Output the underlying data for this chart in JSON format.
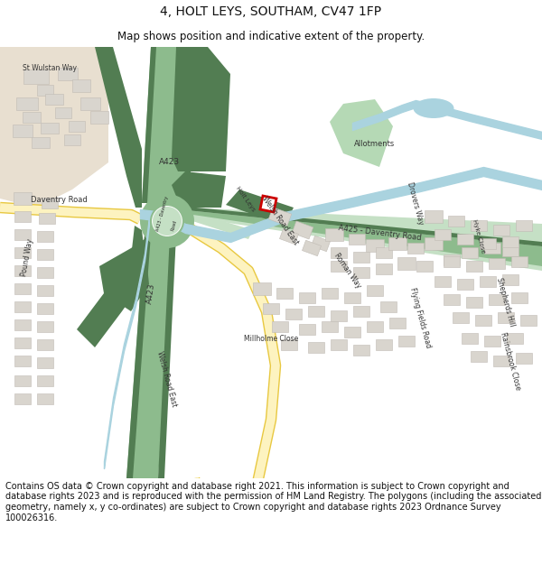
{
  "title_line1": "4, HOLT LEYS, SOUTHAM, CV47 1FP",
  "title_line2": "Map shows position and indicative extent of the property.",
  "footer_text": "Contains OS data © Crown copyright and database right 2021. This information is subject to Crown copyright and database rights 2023 and is reproduced with the permission of HM Land Registry. The polygons (including the associated geometry, namely x, y co-ordinates) are subject to Crown copyright and database rights 2023 Ordnance Survey 100026316.",
  "bg_color": "#ffffff",
  "title_fontsize": 10,
  "subtitle_fontsize": 8.5,
  "footer_fontsize": 7,
  "fig_width": 6.0,
  "fig_height": 6.25,
  "c_bg": "#f5f3ef",
  "c_road_green": "#8dbb8d",
  "c_road_green_light": "#c5e0c5",
  "c_road_green_dark": "#4a7a4a",
  "c_road_yellow_fill": "#fdf3c0",
  "c_road_yellow_edge": "#e8c840",
  "c_water": "#aad3df",
  "c_green_dark": "#527d52",
  "c_green_med": "#7aaa7a",
  "c_green_light": "#b5d9b5",
  "c_building": "#d9d5ce",
  "c_building_edge": "#c0bbb4",
  "c_white": "#ffffff",
  "c_plot_red": "#cc0000",
  "c_text": "#333333",
  "c_beige": "#e8dfd0"
}
